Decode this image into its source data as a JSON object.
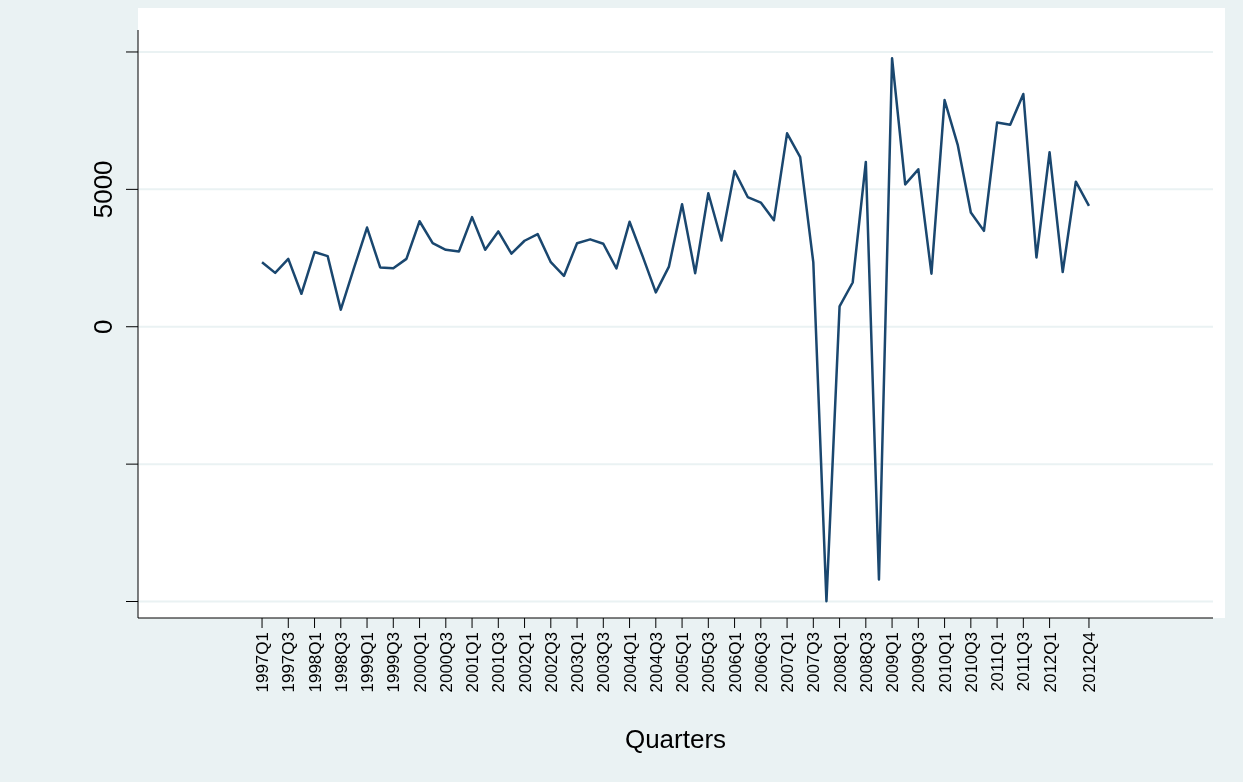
{
  "chart_data": {
    "type": "line",
    "xlabel": "Quarters",
    "categories": [
      "1997Q1",
      null,
      "1997Q3",
      null,
      "1998Q1",
      null,
      "1998Q3",
      null,
      "1999Q1",
      null,
      "1999Q3",
      null,
      "2000Q1",
      null,
      "2000Q3",
      null,
      "2001Q1",
      null,
      "2001Q3",
      null,
      "2002Q1",
      null,
      "2002Q3",
      null,
      "2003Q1",
      null,
      "2003Q3",
      null,
      "2004Q1",
      null,
      "2004Q3",
      null,
      "2005Q1",
      null,
      "2005Q3",
      null,
      "2006Q1",
      null,
      "2006Q3",
      null,
      "2007Q1",
      null,
      "2007Q3",
      null,
      "2008Q1",
      null,
      "2008Q3",
      null,
      "2009Q1",
      null,
      "2009Q3",
      null,
      "2010Q1",
      null,
      "2010Q3",
      null,
      "2011Q1",
      null,
      "2011Q3",
      null,
      "2012Q1",
      null,
      null,
      "2012Q4"
    ],
    "series": [
      {
        "color": "#1a476f",
        "values": [
          2350,
          1960,
          2470,
          1200,
          2720,
          2570,
          620,
          2130,
          3610,
          2160,
          2130,
          2470,
          3840,
          3040,
          2800,
          2740,
          3990,
          2800,
          3470,
          2660,
          3130,
          3370,
          2350,
          1850,
          3040,
          3180,
          3020,
          2120,
          3820,
          2560,
          1250,
          2190,
          4460,
          1950,
          4860,
          3140,
          5670,
          4720,
          4520,
          3880,
          7040,
          6170,
          2340,
          -9990,
          740,
          1610,
          6000,
          -9200,
          9770,
          5180,
          5730,
          1930,
          8250,
          6620,
          4160,
          3490,
          7430,
          7350,
          8470,
          2520,
          6350,
          1990,
          5280,
          4400
        ]
      }
    ],
    "ylim": [
      -10600,
      10800
    ],
    "yticks": [
      {
        "value": -10000,
        "label": null
      },
      {
        "value": -5000,
        "label": null
      },
      0,
      5000,
      {
        "value": 10000,
        "label": null
      }
    ],
    "grid": "y"
  }
}
